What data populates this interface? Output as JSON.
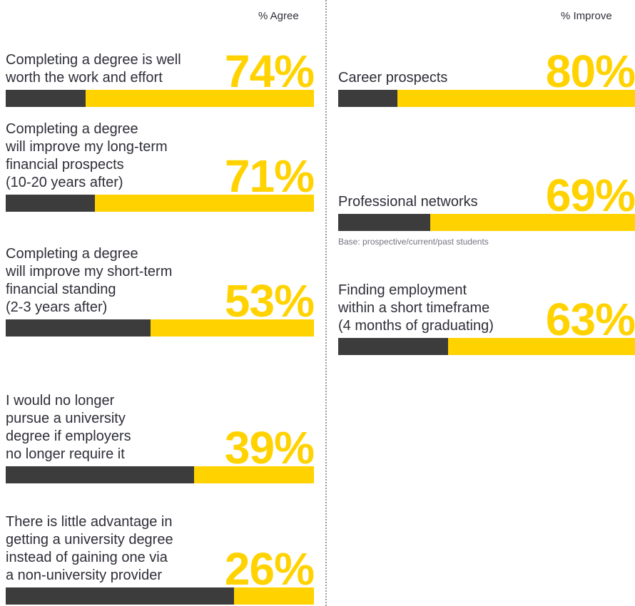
{
  "left_header": "% Agree",
  "right_header": "% Improve",
  "footnote": "Base: prospective/current/past students",
  "colors": {
    "accent": "#ffd200",
    "dark": "#3c3c3c",
    "text": "#2e2e38"
  },
  "chart_data": [
    {
      "type": "bar",
      "title": "% Agree",
      "categories": [
        "Completing a degree is well worth the work and effort",
        "Completing a degree will improve my long-term financial prospects (10-20 years after)",
        "Completing a degree will improve my short-term financial standing (2-3 years after)",
        "I would no longer pursue a university degree if employers no longer require it",
        "There is little advantage in getting a university degree instead of gaining one via a non-university provider"
      ],
      "values": [
        74,
        71,
        53,
        39,
        26
      ],
      "ylim": [
        0,
        100
      ],
      "items": [
        {
          "lines": [
            "Completing a degree is well",
            "worth the work and effort"
          ],
          "value": 74,
          "label": "74%"
        },
        {
          "lines": [
            "Completing a degree",
            "will improve my long-term",
            "financial prospects",
            "(10-20 years after)"
          ],
          "value": 71,
          "label": "71%"
        },
        {
          "lines": [
            "Completing a degree",
            "will improve my short-term",
            "financial standing",
            "(2-3 years after)"
          ],
          "value": 53,
          "label": "53%"
        },
        {
          "lines": [
            "I would no longer",
            "pursue a university",
            "degree if employers",
            "no longer require it"
          ],
          "value": 39,
          "label": "39%"
        },
        {
          "lines": [
            "There is little advantage in",
            "getting a university degree",
            "instead of gaining one via",
            "a non-university provider"
          ],
          "value": 26,
          "label": "26%"
        }
      ]
    },
    {
      "type": "bar",
      "title": "% Improve",
      "categories": [
        "Career prospects",
        "Professional networks",
        "Finding employment within a short timeframe (4 months of graduating)"
      ],
      "values": [
        80,
        69,
        63
      ],
      "ylim": [
        0,
        100
      ],
      "items": [
        {
          "lines": [
            "Career prospects"
          ],
          "value": 80,
          "label": "80%"
        },
        {
          "lines": [
            "Professional networks"
          ],
          "value": 69,
          "label": "69%"
        },
        {
          "lines": [
            "Finding employment",
            "within a short timeframe",
            "(4 months of graduating)"
          ],
          "value": 63,
          "label": "63%"
        }
      ]
    }
  ]
}
